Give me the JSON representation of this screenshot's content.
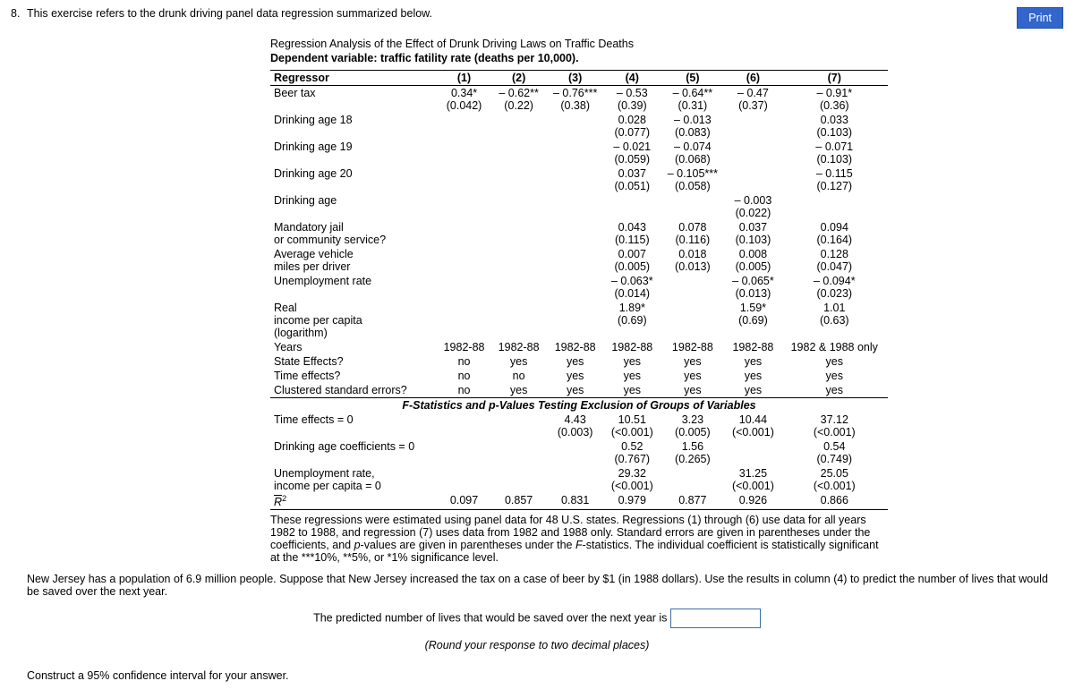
{
  "question": {
    "number": "8.",
    "prompt": "This exercise refers to the drunk driving panel data regression summarized below.",
    "body": "New Jersey has a population of 6.9 million people. Suppose that New Jersey increased the tax on a case of beer by $1 (in 1988 dollars). Use the results in column (4) to predict the number of lives that would be saved over the next year.",
    "predict_label": "The predicted number of lives that would be saved over the next year is",
    "round_note": "(Round your response to two decimal places)",
    "ci_prompt": "Construct a 95% confidence interval for your answer."
  },
  "print_label": "Print",
  "table": {
    "title": "Regression Analysis of the Effect of Drunk Driving Laws on Traffic Deaths",
    "subtitle": "Dependent variable: traffic fatility rate (deaths per 10,000).",
    "col_headers": [
      "Regressor",
      "(1)",
      "(2)",
      "(3)",
      "(4)",
      "(5)",
      "(6)",
      "(7)"
    ],
    "rows": [
      {
        "label": "Beer tax",
        "c": [
          [
            "0.34*",
            "(0.042)"
          ],
          [
            "– 0.62**",
            "(0.22)"
          ],
          [
            "– 0.76***",
            "(0.38)"
          ],
          [
            "– 0.53",
            "(0.39)"
          ],
          [
            "– 0.64**",
            "(0.31)"
          ],
          [
            "– 0.47",
            "(0.37)"
          ],
          [
            "– 0.91*",
            "(0.36)"
          ]
        ]
      },
      {
        "label": "Drinking age 18",
        "c": [
          null,
          null,
          null,
          [
            "0.028",
            "(0.077)"
          ],
          [
            "– 0.013",
            "(0.083)"
          ],
          null,
          [
            "0.033",
            "(0.103)"
          ]
        ]
      },
      {
        "label": "Drinking age 19",
        "c": [
          null,
          null,
          null,
          [
            "– 0.021",
            "(0.059)"
          ],
          [
            "– 0.074",
            "(0.068)"
          ],
          null,
          [
            "– 0.071",
            "(0.103)"
          ]
        ]
      },
      {
        "label": "Drinking age 20",
        "c": [
          null,
          null,
          null,
          [
            "0.037",
            "(0.051)"
          ],
          [
            "– 0.105***",
            "(0.058)"
          ],
          null,
          [
            "– 0.115",
            "(0.127)"
          ]
        ]
      },
      {
        "label": "Drinking age",
        "c": [
          null,
          null,
          null,
          null,
          null,
          [
            "– 0.003",
            "(0.022)"
          ],
          null
        ]
      },
      {
        "label": "Mandatory jail or community service?",
        "c": [
          null,
          null,
          null,
          [
            "0.043",
            "(0.115)"
          ],
          [
            "0.078",
            "(0.116)"
          ],
          [
            "0.037",
            "(0.103)"
          ],
          [
            "0.094",
            "(0.164)"
          ]
        ]
      },
      {
        "label": "Average vehicle miles per driver",
        "c": [
          null,
          null,
          null,
          [
            "0.007",
            "(0.005)"
          ],
          [
            "0.018",
            "(0.013)"
          ],
          [
            "0.008",
            "(0.005)"
          ],
          [
            "0.128",
            "(0.047)"
          ]
        ]
      },
      {
        "label": "Unemployment rate",
        "c": [
          null,
          null,
          null,
          [
            "– 0.063*",
            "(0.014)"
          ],
          null,
          [
            "– 0.065*",
            "(0.013)"
          ],
          [
            "– 0.094*",
            "(0.023)"
          ]
        ]
      },
      {
        "label": "Real income per capita (logarithm)",
        "c": [
          null,
          null,
          null,
          [
            "1.89*",
            "(0.69)"
          ],
          null,
          [
            "1.59*",
            "(0.69)"
          ],
          [
            "1.01",
            "(0.63)"
          ]
        ]
      },
      {
        "label": "Years",
        "single": true,
        "c": [
          "1982-88",
          "1982-88",
          "1982-88",
          "1982-88",
          "1982-88",
          "1982-88",
          "1982 & 1988 only"
        ]
      },
      {
        "label": "State Effects?",
        "single": true,
        "c": [
          "no",
          "yes",
          "yes",
          "yes",
          "yes",
          "yes",
          "yes"
        ]
      },
      {
        "label": "Time effects?",
        "single": true,
        "c": [
          "no",
          "no",
          "yes",
          "yes",
          "yes",
          "yes",
          "yes"
        ]
      },
      {
        "label": "Clustered standard errors?",
        "single": true,
        "sep": true,
        "c": [
          "no",
          "yes",
          "yes",
          "yes",
          "yes",
          "yes",
          "yes"
        ]
      }
    ],
    "fstat_header": "F-Statistics and p-Values Testing Exclusion of Groups of Variables",
    "fstat_rows": [
      {
        "label": "Time effects = 0",
        "c": [
          null,
          null,
          [
            "4.43",
            "(0.003)"
          ],
          [
            "10.51",
            "(<0.001)"
          ],
          [
            "3.23",
            "(0.005)"
          ],
          [
            "10.44",
            "(<0.001)"
          ],
          [
            "37.12",
            "(<0.001)"
          ]
        ]
      },
      {
        "label": "Drinking age coefficients = 0",
        "c": [
          null,
          null,
          null,
          [
            "0.52",
            "(0.767)"
          ],
          [
            "1.56",
            "(0.265)"
          ],
          null,
          [
            "0.54",
            "(0.749)"
          ]
        ]
      },
      {
        "label": "Unemployment rate, income per capita = 0",
        "c": [
          null,
          null,
          null,
          [
            "29.32",
            "(<0.001)"
          ],
          null,
          [
            "31.25",
            "(<0.001)"
          ],
          [
            "25.05",
            "(<0.001)"
          ]
        ]
      }
    ],
    "r2_row": {
      "label": "R̄²",
      "c": [
        "0.097",
        "0.857",
        "0.831",
        "0.979",
        "0.877",
        "0.926",
        "0.866"
      ]
    },
    "footnote": "These regressions were estimated using panel data for 48 U.S. states. Regressions (1) through (6) use data for all years 1982 to 1988, and regression (7) uses data from 1982 and 1988 only. Standard errors are given in parentheses under the coefficients, and p-values are given in parentheses under the F-statistics. The individual coefficient is statistically significant at the ***10%, **5%, or *1% significance level."
  }
}
